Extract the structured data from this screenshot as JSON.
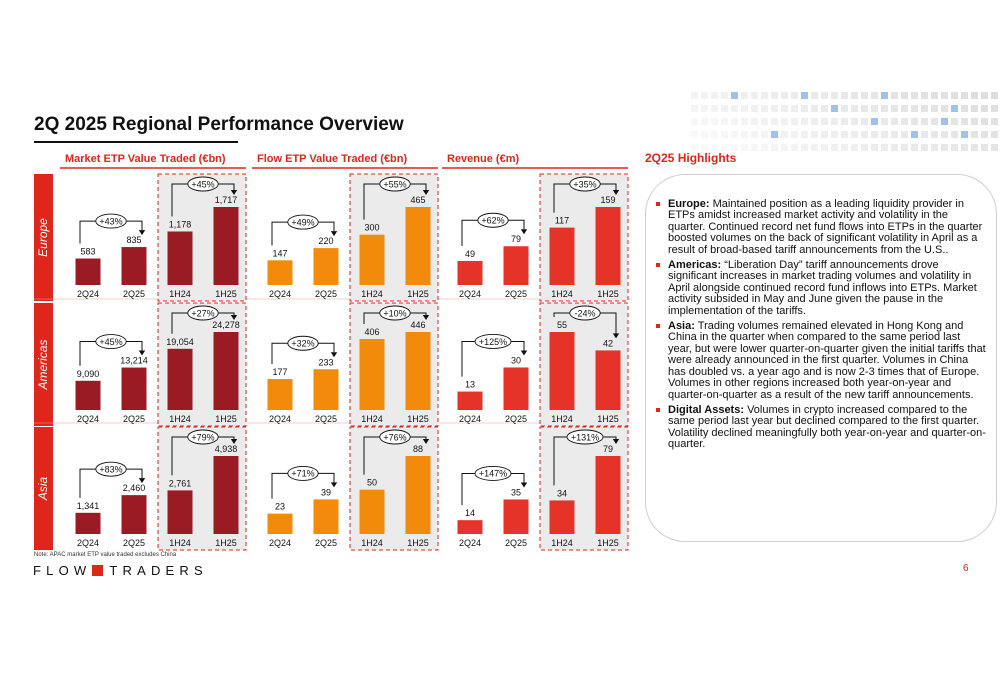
{
  "slide": {
    "title": "2Q 2025 Regional Performance Overview",
    "note": "Note: APAC market ETP value traded excludes China",
    "logo_left": "FLOW",
    "logo_right": "TRADERS",
    "page_number": "6"
  },
  "colors": {
    "accent": "#e0251b",
    "market_bar": "#9b1b24",
    "flow_bar": "#f28a0b",
    "revenue_bar": "#e5332a",
    "highlight_bg": "#ebebeb"
  },
  "highlights": {
    "title": "2Q25 Highlights",
    "items": [
      {
        "label": "Europe:",
        "text": " Maintained position as a leading liquidity provider in ETPs amidst increased market activity and volatility in the quarter. Continued record net fund flows into ETPs in the quarter boosted volumes on the back of significant volatility in April as a result of broad-based tariff announcements from the U.S.."
      },
      {
        "label": "Americas:",
        "text": " “Liberation Day” tariff announcements drove significant increases in market trading volumes and volatility in April alongside continued record fund inflows into ETPs. Market activity subsided in May and June given the pause in the implementation of the tariffs."
      },
      {
        "label": "Asia:",
        "text": " Trading volumes remained elevated in Hong Kong and China in the quarter when compared to the same period last year, but were lower quarter-on-quarter given the initial tariffs that were already announced in the first quarter. Volumes in China has doubled vs. a year ago and is now 2-3 times that of Europe. Volumes in other regions increased both year-on-year and quarter-on-quarter as a result of the new tariff announcements."
      },
      {
        "label": "Digital Assets:",
        "text": " Volumes in crypto increased compared to the same period last year but declined compared to the first quarter. Volatility declined meaningfully both year-on-year and quarter-on-quarter."
      }
    ]
  },
  "chart_data": [
    {
      "type": "bar",
      "metric": "Market ETP Value Traded (€bn)",
      "region": "Europe",
      "categories": [
        "2Q24",
        "2Q25",
        "1H24",
        "1H25"
      ],
      "values": [
        583,
        835,
        1178,
        1717
      ],
      "labels": [
        "583",
        "835",
        "1,178",
        "1,717"
      ],
      "quarter_change": "+43%",
      "half_change": "+45%"
    },
    {
      "type": "bar",
      "metric": "Flow ETP Value Traded (€bn)",
      "region": "Europe",
      "categories": [
        "2Q24",
        "2Q25",
        "1H24",
        "1H25"
      ],
      "values": [
        147,
        220,
        300,
        465
      ],
      "labels": [
        "147",
        "220",
        "300",
        "465"
      ],
      "quarter_change": "+49%",
      "half_change": "+55%"
    },
    {
      "type": "bar",
      "metric": "Revenue (€m)",
      "region": "Europe",
      "categories": [
        "2Q24",
        "2Q25",
        "1H24",
        "1H25"
      ],
      "values": [
        49,
        79,
        117,
        159
      ],
      "labels": [
        "49",
        "79",
        "117",
        "159"
      ],
      "quarter_change": "+62%",
      "half_change": "+35%"
    },
    {
      "type": "bar",
      "metric": "Market ETP Value Traded (€bn)",
      "region": "Americas",
      "categories": [
        "2Q24",
        "2Q25",
        "1H24",
        "1H25"
      ],
      "values": [
        9090,
        13214,
        19054,
        24278
      ],
      "labels": [
        "9,090",
        "13,214",
        "19,054",
        "24,278"
      ],
      "quarter_change": "+45%",
      "half_change": "+27%"
    },
    {
      "type": "bar",
      "metric": "Flow ETP Value Traded (€bn)",
      "region": "Americas",
      "categories": [
        "2Q24",
        "2Q25",
        "1H24",
        "1H25"
      ],
      "values": [
        177,
        233,
        406,
        446
      ],
      "labels": [
        "177",
        "233",
        "406",
        "446"
      ],
      "quarter_change": "+32%",
      "half_change": "+10%"
    },
    {
      "type": "bar",
      "metric": "Revenue (€m)",
      "region": "Americas",
      "categories": [
        "2Q24",
        "2Q25",
        "1H24",
        "1H25"
      ],
      "values": [
        13,
        30,
        55,
        42
      ],
      "labels": [
        "13",
        "30",
        "55",
        "42"
      ],
      "quarter_change": "+125%",
      "half_change": "-24%"
    },
    {
      "type": "bar",
      "metric": "Market ETP Value Traded (€bn)",
      "region": "Asia",
      "categories": [
        "2Q24",
        "2Q25",
        "1H24",
        "1H25"
      ],
      "values": [
        1341,
        2460,
        2761,
        4938
      ],
      "labels": [
        "1,341",
        "2,460",
        "2,761",
        "4,938"
      ],
      "quarter_change": "+83%",
      "half_change": "+79%"
    },
    {
      "type": "bar",
      "metric": "Flow ETP Value Traded (€bn)",
      "region": "Asia",
      "categories": [
        "2Q24",
        "2Q25",
        "1H24",
        "1H25"
      ],
      "values": [
        23,
        39,
        50,
        88
      ],
      "labels": [
        "23",
        "39",
        "50",
        "88"
      ],
      "quarter_change": "+71%",
      "half_change": "+76%"
    },
    {
      "type": "bar",
      "metric": "Revenue (€m)",
      "region": "Asia",
      "categories": [
        "2Q24",
        "2Q25",
        "1H24",
        "1H25"
      ],
      "values": [
        14,
        35,
        34,
        79
      ],
      "labels": [
        "14",
        "35",
        "34",
        "79"
      ],
      "quarter_change": "+147%",
      "half_change": "+131%"
    }
  ]
}
